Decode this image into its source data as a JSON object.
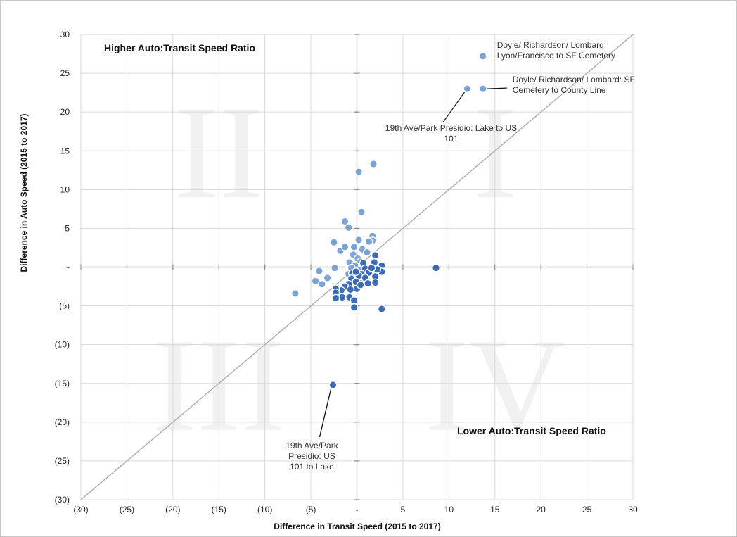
{
  "chart_data": {
    "type": "scatter",
    "xlabel": "Difference in Transit Speed (2015 to 2017)",
    "ylabel": "Difference in Auto Speed (2015 to 2017)",
    "xlim": [
      -30,
      30
    ],
    "ylim": [
      -30,
      30
    ],
    "x_ticks": [
      "(30)",
      "(25)",
      "(20)",
      "(15)",
      "(10)",
      "(5)",
      "-",
      "5",
      "10",
      "15",
      "20",
      "25",
      "30"
    ],
    "y_ticks": [
      "30",
      "25",
      "20",
      "15",
      "10",
      "5",
      "-",
      "(5)",
      "(10)",
      "(15)",
      "(20)",
      "(25)",
      "(30)"
    ],
    "grid": true,
    "diagonal_line": [
      [
        -30,
        -30
      ],
      [
        30,
        30
      ]
    ],
    "quadrant_labels": [
      "II",
      "I",
      "III",
      "IV"
    ],
    "region_labels": {
      "upper_left": "Higher Auto:Transit Speed Ratio",
      "lower_right": "Lower Auto:Transit Speed Ratio"
    },
    "colors": {
      "light_points": "#7ba3d6",
      "dark_points": "#3c6cb4",
      "diagonal": "#a6a6a6",
      "grid": "#d9d9d9"
    },
    "series": [
      {
        "color": "#7ba3d6",
        "points": [
          [
            13.7,
            27.2
          ],
          [
            12.0,
            23.0
          ],
          [
            13.7,
            23.0
          ],
          [
            1.8,
            13.3
          ],
          [
            0.2,
            12.3
          ],
          [
            0.5,
            7.1
          ],
          [
            -1.3,
            5.9
          ],
          [
            -0.9,
            5.1
          ],
          [
            1.7,
            4.0
          ],
          [
            0.2,
            3.5
          ],
          [
            1.7,
            3.4
          ],
          [
            1.3,
            3.3
          ],
          [
            -2.5,
            3.2
          ],
          [
            -1.8,
            2.1
          ],
          [
            -1.3,
            2.6
          ],
          [
            -0.3,
            2.6
          ],
          [
            0.6,
            2.3
          ],
          [
            1.1,
            1.9
          ],
          [
            -0.4,
            1.6
          ],
          [
            0.1,
            1.1
          ],
          [
            -0.8,
            0.6
          ],
          [
            0.4,
            0.7
          ],
          [
            -0.2,
            0.2
          ],
          [
            0.7,
            0.3
          ],
          [
            -2.4,
            -0.1
          ],
          [
            -0.6,
            -0.1
          ],
          [
            0.3,
            -0.4
          ],
          [
            -4.1,
            -0.5
          ],
          [
            -3.2,
            -1.4
          ],
          [
            -0.9,
            -0.9
          ],
          [
            -0.3,
            -1.2
          ],
          [
            -4.5,
            -1.8
          ],
          [
            -3.8,
            -2.2
          ],
          [
            -6.7,
            -3.4
          ],
          [
            -0.6,
            -1.8
          ],
          [
            0.4,
            -2.1
          ]
        ]
      },
      {
        "color": "#3c6cb4",
        "points": [
          [
            8.6,
            -0.1
          ],
          [
            2.7,
            0.2
          ],
          [
            2.7,
            -0.6
          ],
          [
            2.0,
            1.5
          ],
          [
            1.5,
            -0.4
          ],
          [
            2.2,
            -0.3
          ],
          [
            0.7,
            0.5
          ],
          [
            0.9,
            -0.2
          ],
          [
            1.3,
            -0.7
          ],
          [
            0.5,
            -0.9
          ],
          [
            0.2,
            -1.1
          ],
          [
            0.9,
            -1.4
          ],
          [
            -0.5,
            -0.8
          ],
          [
            -0.1,
            -0.6
          ],
          [
            -0.6,
            -1.5
          ],
          [
            -0.1,
            -1.9
          ],
          [
            1.2,
            -2.1
          ],
          [
            2.0,
            -1.2
          ],
          [
            2.0,
            -2.0
          ],
          [
            -0.9,
            -2.2
          ],
          [
            -1.3,
            -2.5
          ],
          [
            -1.7,
            -3.0
          ],
          [
            -2.3,
            -2.8
          ],
          [
            -2.3,
            -3.3
          ],
          [
            -1.6,
            -3.9
          ],
          [
            -0.8,
            -3.9
          ],
          [
            -0.3,
            -4.3
          ],
          [
            -2.3,
            -4.0
          ],
          [
            -0.3,
            -5.2
          ],
          [
            2.7,
            -5.4
          ],
          [
            0.0,
            -2.8
          ],
          [
            -0.7,
            -2.9
          ],
          [
            0.4,
            -2.3
          ],
          [
            -2.6,
            -15.2
          ],
          [
            1.9,
            0.6
          ],
          [
            1.6,
            -0.1
          ]
        ]
      }
    ],
    "annotations": [
      {
        "lines": [
          "Doyle/ Richardson/ Lombard:",
          "Lyon/Francisco to SF Cemetery"
        ],
        "point": [
          13.7,
          27.2
        ]
      },
      {
        "lines": [
          "Doyle/ Richardson/ Lombard: SF",
          "Cemetery to County Line"
        ],
        "point": [
          13.7,
          23.0
        ]
      },
      {
        "lines": [
          "19th Ave/Park Presidio: Lake to US",
          "101"
        ],
        "point": [
          12.0,
          23.0
        ]
      },
      {
        "lines": [
          "19th Ave/Park",
          "Presidio: US",
          "101 to Lake"
        ],
        "point": [
          -2.6,
          -15.2
        ]
      }
    ]
  }
}
